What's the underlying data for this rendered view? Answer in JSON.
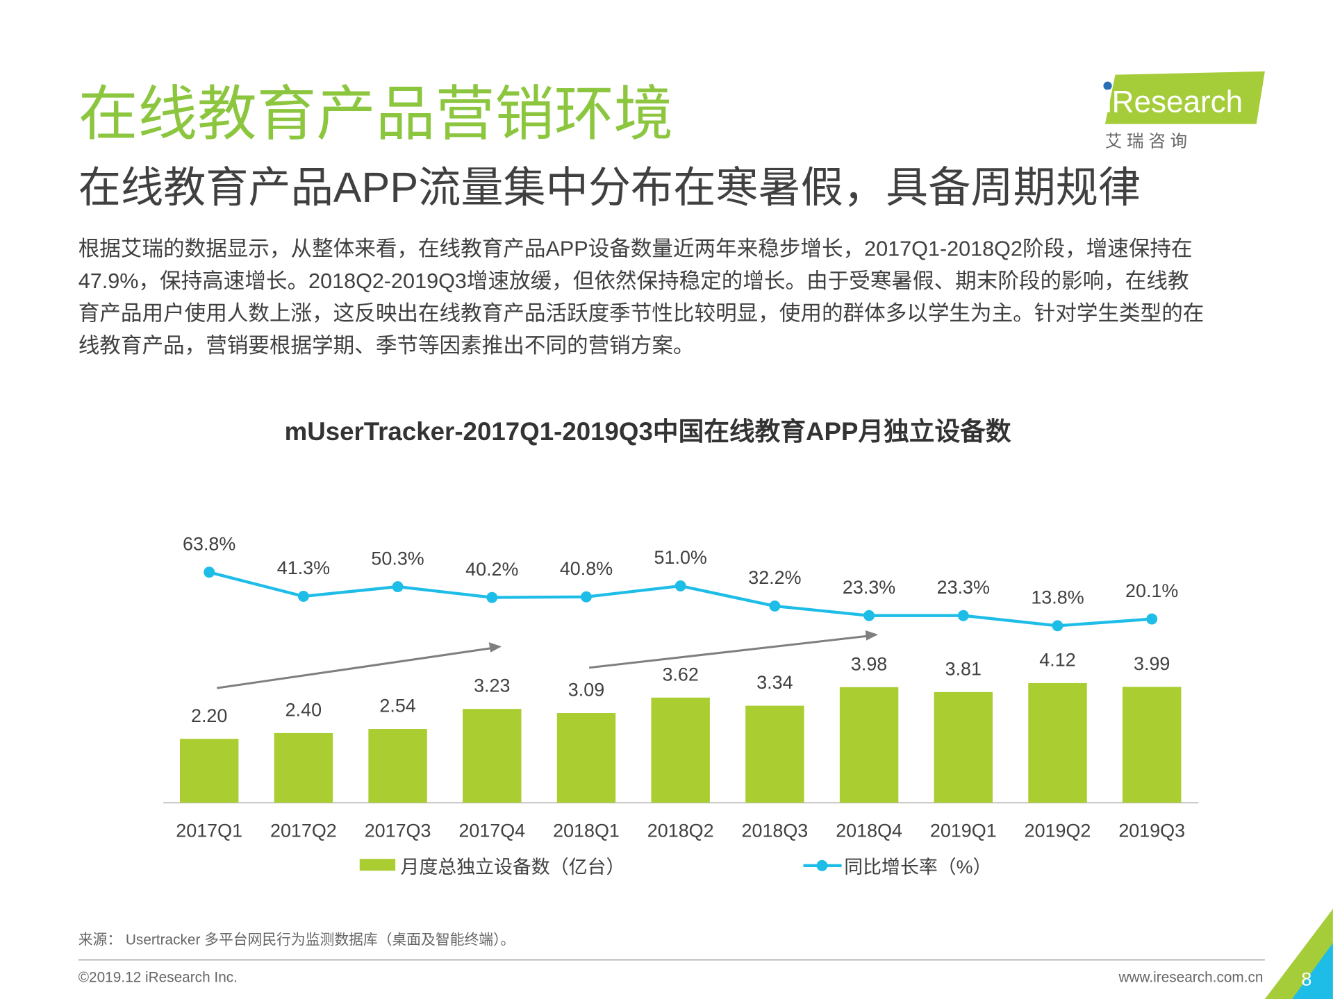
{
  "header": {
    "title": "在线教育产品营销环境",
    "subtitle": "在线教育产品APP流量集中分布在寒暑假，具备周期规律"
  },
  "logo": {
    "text": "iResearch",
    "subtitle": "艾 瑞 咨 询"
  },
  "body": {
    "lines": [
      "根据艾瑞的数据显示，从整体来看，在线教育产品APP设备数量近两年来稳步增长，2017Q1-2018Q2阶段，增速保持在",
      "47.9%，保持高速增长。2018Q2-2019Q3增速放缓，但依然保持稳定的增长。由于受寒暑假、期末阶段的影响，在线教",
      "育产品用户使用人数上涨，这反映出在线教育产品活跃度季节性比较明显，使用的群体多以学生为主。针对学生类型的在",
      "线教育产品，营销要根据学期、季节等因素推出不同的营销方案。"
    ]
  },
  "chart_data": {
    "type": "bar",
    "title": "mUserTracker-2017Q1-2019Q3中国在线教育APP月独立设备数",
    "categories": [
      "2017Q1",
      "2017Q2",
      "2017Q3",
      "2017Q4",
      "2018Q1",
      "2018Q2",
      "2018Q3",
      "2018Q4",
      "2019Q1",
      "2019Q2",
      "2019Q3"
    ],
    "series": [
      {
        "name": "月度总独立设备数（亿台）",
        "type": "bar",
        "color": "#aacd32",
        "values": [
          2.2,
          2.4,
          2.54,
          3.23,
          3.09,
          3.62,
          3.34,
          3.98,
          3.81,
          4.12,
          3.99
        ],
        "value_labels": [
          "2.20",
          "2.40",
          "2.54",
          "3.23",
          "3.09",
          "3.62",
          "3.34",
          "3.98",
          "3.81",
          "4.12",
          "3.99"
        ]
      },
      {
        "name": "同比增长率（%）",
        "type": "line",
        "color": "#1ebde8",
        "values": [
          63.8,
          41.3,
          50.3,
          40.2,
          40.8,
          51.0,
          32.2,
          23.3,
          23.3,
          13.8,
          20.1
        ],
        "value_labels": [
          "63.8%",
          "41.3%",
          "50.3%",
          "40.2%",
          "40.8%",
          "51.0%",
          "32.2%",
          "23.3%",
          "23.3%",
          "13.8%",
          "20.1%"
        ]
      }
    ]
  },
  "footer": {
    "source": "来源： Usertracker 多平台网民行为监测数据库（桌面及智能终端）。",
    "copyright": "©2019.12 iResearch Inc.",
    "url": "www.iresearch.com.cn",
    "page": 8
  }
}
